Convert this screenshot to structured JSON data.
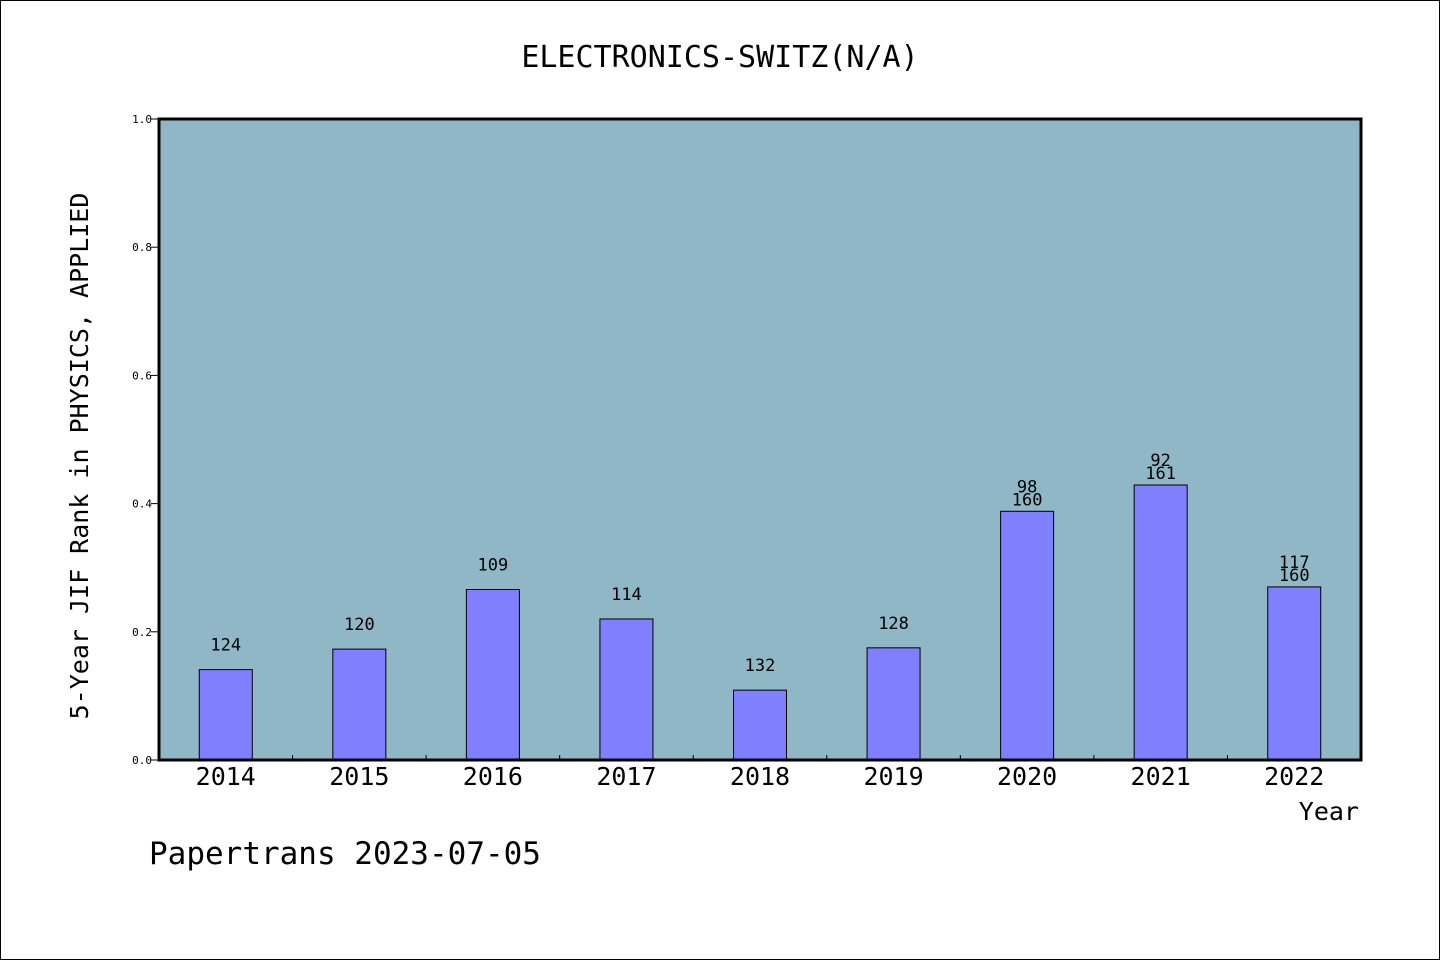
{
  "chart_data": {
    "type": "bar",
    "title": "ELECTRONICS-SWITZ(N/A)",
    "xlabel": "Year",
    "ylabel": "5-Year JIF Rank in PHYSICS, APPLIED",
    "ylim": [
      0,
      1.0
    ],
    "yticks": [
      "0.0",
      "0.2",
      "0.4",
      "0.6",
      "0.8",
      "1.0"
    ],
    "categories": [
      "2014",
      "2015",
      "2016",
      "2017",
      "2018",
      "2019",
      "2020",
      "2021",
      "2022"
    ],
    "values": [
      0.141,
      0.173,
      0.266,
      0.22,
      0.109,
      0.175,
      0.388,
      0.429,
      0.27
    ],
    "bar_labels": [
      [
        "124"
      ],
      [
        "120"
      ],
      [
        "109"
      ],
      [
        "114"
      ],
      [
        "132"
      ],
      [
        "128"
      ],
      [
        "98",
        "160"
      ],
      [
        "92",
        "161"
      ],
      [
        "117",
        "160"
      ]
    ],
    "grid": false,
    "colors": {
      "plot_background": "#8fb7c5",
      "bar_fill": "#8080ff",
      "bar_stroke": "#000000"
    }
  },
  "footer": {
    "text": "Papertrans 2023-07-05"
  }
}
